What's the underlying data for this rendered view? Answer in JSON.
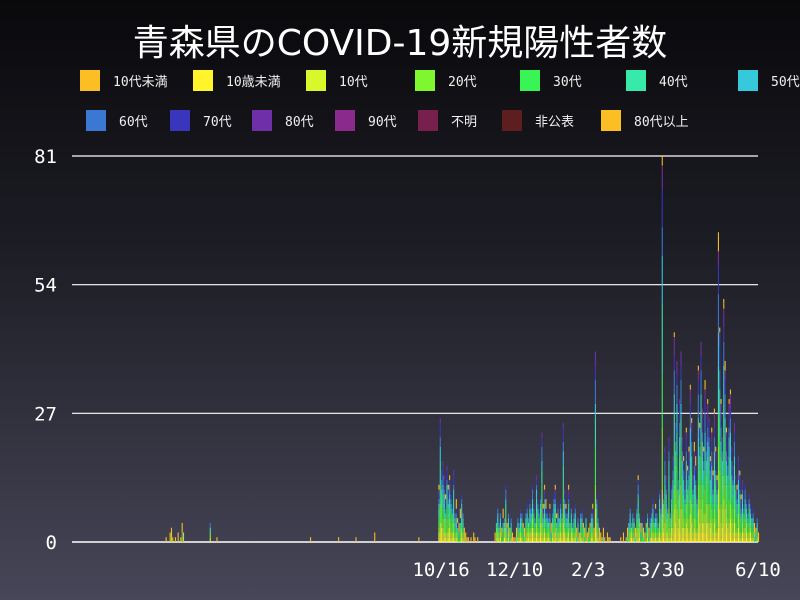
{
  "chart_data": {
    "type": "bar",
    "stacked": true,
    "title": "青森県のCOVID-19新規陽性者数",
    "ylim": [
      0,
      81
    ],
    "yticks": [
      0,
      27,
      54,
      81
    ],
    "xlim": [
      "2020-01-14",
      "2021-06-10"
    ],
    "xticks": [
      {
        "date": "2020-10-16",
        "label": "10/16"
      },
      {
        "date": "2020-12-10",
        "label": "12/10"
      },
      {
        "date": "2021-02-03",
        "label": "2/3"
      },
      {
        "date": "2021-03-30",
        "label": "3/30"
      },
      {
        "date": "2021-06-10",
        "label": "6/10"
      }
    ],
    "grid": true,
    "legend_placement": "top",
    "legend": [
      {
        "name": "10代未満",
        "color": "#fbbf24"
      },
      {
        "name": "10歳未満",
        "color": "#fff52a"
      },
      {
        "name": "10代",
        "color": "#d8f82c"
      },
      {
        "name": "20代",
        "color": "#7ef72e"
      },
      {
        "name": "30代",
        "color": "#38f555"
      },
      {
        "name": "40代",
        "color": "#38eaa9"
      },
      {
        "name": "50代",
        "color": "#36c9dc"
      },
      {
        "name": "60代",
        "color": "#3a78d4"
      },
      {
        "name": "70代",
        "color": "#3935bd"
      },
      {
        "name": "80代",
        "color": "#6e2fa8"
      },
      {
        "name": "90代",
        "color": "#8a2a8c"
      },
      {
        "name": "不明",
        "color": "#77204d"
      },
      {
        "name": "非公表",
        "color": "#5e1d1f"
      },
      {
        "name": "80代以上",
        "color": "#fbbf24"
      }
    ],
    "daily_totals": [
      {
        "start": "2020-03-24",
        "values": [
          1,
          0,
          0,
          2,
          3,
          1,
          0,
          1,
          0,
          2,
          0,
          1,
          4,
          2,
          0,
          0,
          0,
          0,
          0,
          0,
          0,
          0,
          0,
          0,
          0,
          0,
          0,
          0,
          0,
          0,
          0,
          0,
          0,
          4,
          0,
          0,
          0,
          0,
          1
        ]
      },
      {
        "start": "2020-07-10",
        "values": [
          1
        ]
      },
      {
        "start": "2020-07-31",
        "values": [
          1
        ]
      },
      {
        "start": "2020-08-13",
        "values": [
          1
        ]
      },
      {
        "start": "2020-08-27",
        "values": [
          2
        ]
      },
      {
        "start": "2020-09-29",
        "values": [
          1
        ]
      },
      {
        "start": "2020-10-14",
        "values": [
          12,
          26,
          15,
          17,
          14,
          10,
          16,
          12,
          14,
          10,
          8,
          15,
          6,
          9,
          5,
          4,
          7,
          10,
          6,
          3,
          2,
          1,
          1,
          0,
          1,
          0,
          2,
          1,
          0,
          1
        ]
      },
      {
        "start": "2020-11-25",
        "values": [
          2,
          5,
          7,
          4,
          6,
          3,
          7,
          5,
          12,
          4,
          6,
          3,
          5,
          2,
          1,
          1,
          3,
          5,
          4,
          7,
          6,
          4,
          3,
          6,
          8,
          5,
          9,
          7,
          12,
          8,
          5,
          14,
          9,
          7,
          10,
          23,
          8,
          12,
          9,
          6,
          5,
          8,
          4,
          7,
          10,
          12,
          6,
          8,
          5,
          9,
          7,
          25,
          11,
          8,
          6,
          12,
          5,
          7,
          4,
          6,
          8,
          3,
          5,
          2,
          6,
          7,
          4,
          3,
          5,
          2,
          3,
          4,
          6,
          8,
          3,
          40,
          10,
          5,
          3,
          2,
          1,
          3,
          1,
          0,
          2,
          1,
          1
        ]
      },
      {
        "start": "2021-02-27",
        "values": [
          1,
          0,
          2,
          0,
          1,
          3,
          5,
          7,
          4,
          6,
          5,
          3,
          8,
          14,
          6,
          4,
          5,
          3,
          2,
          4,
          6,
          3,
          5,
          7,
          9,
          5,
          8,
          6,
          4,
          11,
          8,
          81,
          10,
          20,
          14,
          8,
          22,
          6,
          12,
          18,
          44,
          25,
          38,
          15,
          30,
          40,
          22,
          18,
          12,
          24,
          16,
          20,
          33,
          26,
          14,
          21,
          18,
          10,
          37,
          25,
          42,
          28,
          20,
          34,
          22,
          30,
          26,
          18,
          24,
          15,
          28,
          20,
          14,
          65,
          45,
          30,
          22,
          51,
          38,
          24,
          18,
          30,
          32,
          20,
          16,
          25,
          14,
          12,
          18,
          15,
          10,
          13,
          8,
          12,
          9,
          6,
          10,
          8,
          5,
          7,
          4,
          3,
          5,
          2
        ]
      }
    ]
  }
}
